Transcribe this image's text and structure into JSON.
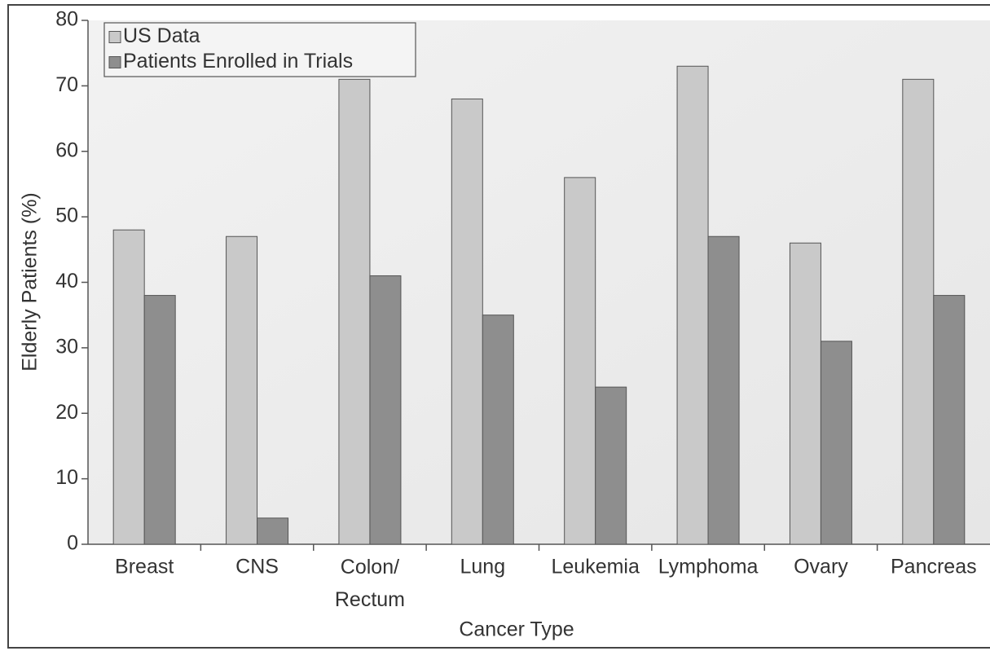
{
  "chart_data": {
    "type": "bar",
    "ylabel": "Elderly Patients (%)",
    "xlabel": "Cancer Type",
    "categories": [
      "Breast",
      "CNS",
      "Colon/\nRectum",
      "Lung",
      "Leukemia",
      "Lymphoma",
      "Ovary",
      "Pancreas"
    ],
    "series": [
      {
        "name": "US Data",
        "color": "#c9c9c9",
        "values": [
          48,
          47,
          71,
          68,
          56,
          73,
          46,
          71
        ]
      },
      {
        "name": "Patients Enrolled in Trials",
        "color": "#8e8e8e",
        "values": [
          38,
          4,
          41,
          35,
          24,
          47,
          31,
          38
        ]
      }
    ],
    "ylim": [
      0,
      80
    ],
    "yticks": [
      0,
      10,
      20,
      30,
      40,
      50,
      60,
      70,
      80
    ],
    "legend": "upper left"
  }
}
